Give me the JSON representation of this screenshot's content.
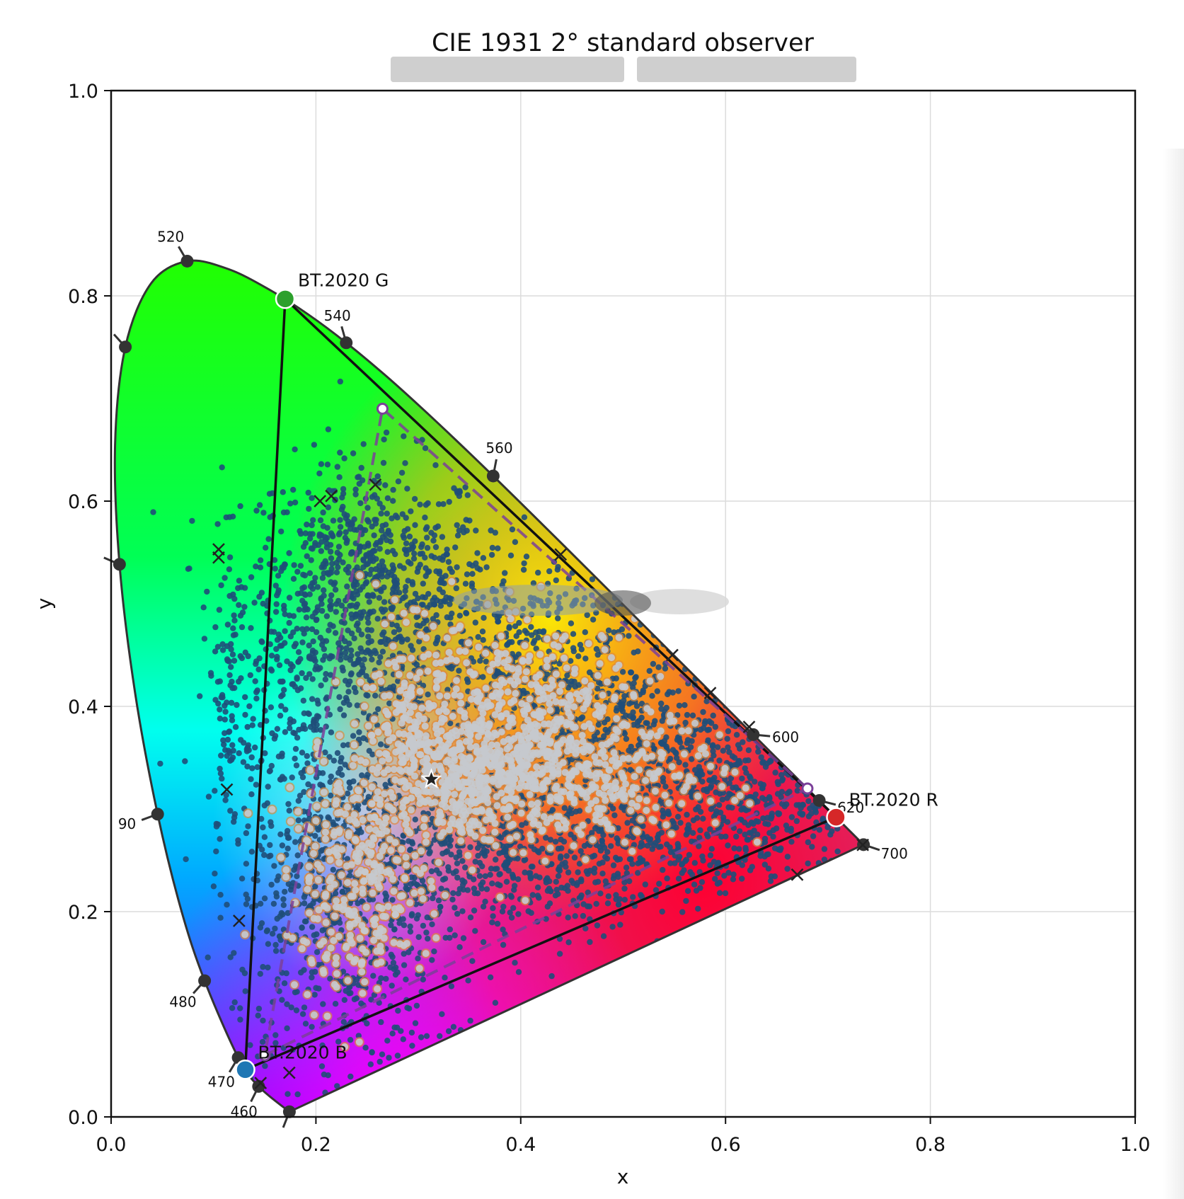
{
  "chart_data": {
    "type": "scatter",
    "title": "CIE 1931 2° standard observer",
    "xlabel": "x",
    "ylabel": "y",
    "xlim": [
      0.0,
      1.0
    ],
    "ylim": [
      0.0,
      1.0
    ],
    "x_ticks": [
      "0.0",
      "0.2",
      "0.4",
      "0.6",
      "0.8",
      "1.0"
    ],
    "y_ticks": [
      "0.0",
      "0.2",
      "0.4",
      "0.6",
      "0.8",
      "1.0"
    ],
    "grid": true,
    "spectral_locus": [
      [
        0.1741,
        0.005
      ],
      [
        0.144,
        0.0297
      ],
      [
        0.1241,
        0.0578
      ],
      [
        0.0913,
        0.1327
      ],
      [
        0.0687,
        0.2007
      ],
      [
        0.0454,
        0.295
      ],
      [
        0.0235,
        0.4127
      ],
      [
        0.0082,
        0.5384
      ],
      [
        0.0039,
        0.6548
      ],
      [
        0.0139,
        0.7502
      ],
      [
        0.0389,
        0.812
      ],
      [
        0.0743,
        0.8338
      ],
      [
        0.1142,
        0.8262
      ],
      [
        0.1547,
        0.8059
      ],
      [
        0.1929,
        0.7816
      ],
      [
        0.2296,
        0.7543
      ],
      [
        0.2658,
        0.7243
      ],
      [
        0.3016,
        0.6923
      ],
      [
        0.3373,
        0.6589
      ],
      [
        0.3731,
        0.6245
      ],
      [
        0.4087,
        0.5896
      ],
      [
        0.4441,
        0.5547
      ],
      [
        0.4788,
        0.5202
      ],
      [
        0.5125,
        0.4866
      ],
      [
        0.5448,
        0.4544
      ],
      [
        0.5752,
        0.4242
      ],
      [
        0.6029,
        0.3965
      ],
      [
        0.627,
        0.3725
      ],
      [
        0.6482,
        0.3514
      ],
      [
        0.6658,
        0.334
      ],
      [
        0.6915,
        0.3083
      ],
      [
        0.7079,
        0.292
      ],
      [
        0.7347,
        0.2653
      ]
    ],
    "wavelength_labels": [
      {
        "label": "460",
        "x": 0.144,
        "y": 0.0297
      },
      {
        "label": "470",
        "x": 0.1241,
        "y": 0.0578
      },
      {
        "label": "480",
        "x": 0.0913,
        "y": 0.1327
      },
      {
        "label": "90",
        "x": 0.0454,
        "y": 0.295
      },
      {
        "label": "520",
        "x": 0.0743,
        "y": 0.8338
      },
      {
        "label": "540",
        "x": 0.2296,
        "y": 0.7543
      },
      {
        "label": "560",
        "x": 0.3731,
        "y": 0.6245
      },
      {
        "label": "600",
        "x": 0.627,
        "y": 0.3725
      },
      {
        "label": "620",
        "x": 0.6915,
        "y": 0.3083
      },
      {
        "label": "700",
        "x": 0.7347,
        "y": 0.2653
      }
    ],
    "unlabeled_locus_markers": [
      {
        "x": 0.0082,
        "y": 0.5384
      },
      {
        "x": 0.0139,
        "y": 0.7502
      },
      {
        "x": 0.1741,
        "y": 0.005
      }
    ],
    "bt2020_primaries": [
      {
        "label": "BT.2020 R",
        "x": 0.708,
        "y": 0.292,
        "color": "#d62728"
      },
      {
        "label": "BT.2020 G",
        "x": 0.17,
        "y": 0.797,
        "color": "#2ca02c"
      },
      {
        "label": "BT.2020 B",
        "x": 0.131,
        "y": 0.046,
        "color": "#1f77b4"
      }
    ],
    "dci_p3_primaries": [
      {
        "x": 0.68,
        "y": 0.32
      },
      {
        "x": 0.265,
        "y": 0.69
      },
      {
        "x": 0.15,
        "y": 0.06
      }
    ],
    "white_point": {
      "x": 0.3127,
      "y": 0.329
    },
    "x_markers": [
      [
        0.105,
        0.553
      ],
      [
        0.105,
        0.545
      ],
      [
        0.204,
        0.6
      ],
      [
        0.215,
        0.605
      ],
      [
        0.258,
        0.616
      ],
      [
        0.439,
        0.548
      ],
      [
        0.548,
        0.45
      ],
      [
        0.585,
        0.413
      ],
      [
        0.623,
        0.38
      ],
      [
        0.734,
        0.265
      ],
      [
        0.67,
        0.236
      ],
      [
        0.113,
        0.319
      ],
      [
        0.125,
        0.191
      ],
      [
        0.174,
        0.043
      ],
      [
        0.146,
        0.033
      ]
    ],
    "colors": {
      "scatter_dark": "#1f4e79",
      "scatter_light": "#c5c9ce",
      "outline_orange": "#e08a3c",
      "p3_dashed": "#7b3f99"
    }
  }
}
